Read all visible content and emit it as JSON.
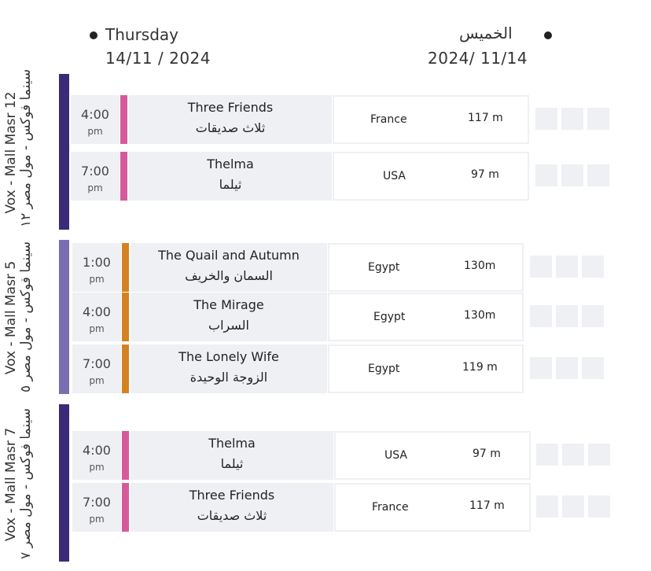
{
  "header": {
    "day_en": "Thursday",
    "date_en": "14/11 / 2024",
    "day_ar": "الخميس",
    "date_ar": "2024/ 11/14"
  },
  "colors": {
    "venue_bar_1": "#3b2a78",
    "venue_bar_2": "#7a6db3",
    "venue_bar_3": "#3b2a78",
    "stripe_pink": "#d65a9b",
    "stripe_orange": "#d4821f",
    "cell_bg": "#eef0f4"
  },
  "venues": [
    {
      "label_line1": "Vox - Mall Masr 12",
      "label_line2": "سينما فوكس - مول مصر ١٢",
      "screenings": [
        {
          "time": "4:00",
          "ampm": "pm",
          "title_en": "Three Friends",
          "title_ar": "ثلاث صديقات",
          "country": "France",
          "duration": "117 m"
        },
        {
          "time": "7:00",
          "ampm": "pm",
          "title_en": "Thelma",
          "title_ar": "ثيلما",
          "country": "USA",
          "duration": "97 m"
        }
      ]
    },
    {
      "label_line1": "Vox - Mall Masr 5",
      "label_line2": "سينما فوكس - مول مصر ٥",
      "screenings": [
        {
          "time": "1:00",
          "ampm": "pm",
          "title_en": "The Quail and Autumn",
          "title_ar": "السمان والخريف",
          "country": "Egypt",
          "duration": "130m"
        },
        {
          "time": "4:00",
          "ampm": "pm",
          "title_en": "The Mirage",
          "title_ar": "السراب",
          "country": "Egypt",
          "duration": "130m"
        },
        {
          "time": "7:00",
          "ampm": "pm",
          "title_en": "The Lonely Wife",
          "title_ar": "الزوجة الوحيدة",
          "country": "Egypt",
          "duration": "119 m"
        }
      ]
    },
    {
      "label_line1": "Vox - Mall Masr 7",
      "label_line2": "سينما فوكس - مول مصر ٧",
      "screenings": [
        {
          "time": "4:00",
          "ampm": "pm",
          "title_en": "Thelma",
          "title_ar": "ثيلما",
          "country": "USA",
          "duration": "97 m"
        },
        {
          "time": "7:00",
          "ampm": "pm",
          "title_en": "Three Friends",
          "title_ar": "ثلاث صديقات",
          "country": "France",
          "duration": "117 m"
        }
      ]
    }
  ]
}
